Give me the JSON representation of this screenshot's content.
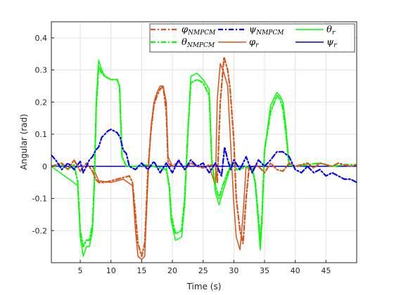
{
  "chart_data": {
    "type": "line",
    "xlabel": "Time (s)",
    "ylabel": "Angular (rad)",
    "xlim": [
      0.3,
      50
    ],
    "ylim": [
      -0.3,
      0.45
    ],
    "xticks": [
      5,
      10,
      15,
      20,
      25,
      30,
      35,
      40,
      45
    ],
    "yticks": [
      -0.2,
      -0.1,
      0,
      0.1,
      0.2,
      0.3,
      0.4
    ],
    "xtick_labels": [
      "5",
      "10",
      "15",
      "20",
      "25",
      "30",
      "35",
      "40",
      "45"
    ],
    "ytick_labels": [
      "-0.2",
      "-0.1",
      "0",
      "0.1",
      "0.2",
      "0.3",
      "0.4"
    ],
    "grid": true,
    "legend_position": "top-right",
    "series": [
      {
        "name": "φ_NMPCM",
        "name_base": "φ",
        "name_sub": "NMPCM",
        "color": "#d95319",
        "dash": "dashdot",
        "width": 2.2,
        "x": [
          0.3,
          2,
          3,
          4,
          5,
          6,
          7,
          7.5,
          8,
          9,
          10,
          11,
          12,
          13,
          13.5,
          14,
          14.4,
          15,
          15.5,
          16,
          16.5,
          17,
          17.5,
          18,
          18.5,
          19,
          19.3,
          20,
          21,
          22,
          23,
          24,
          25,
          26,
          27,
          27.3,
          27.8,
          28.4,
          29,
          29.4,
          30,
          30.4,
          31,
          31.5,
          32,
          32.5,
          33,
          33.5,
          34,
          35,
          36,
          37,
          38,
          39,
          40,
          41,
          42,
          43,
          44,
          45,
          46,
          47,
          48,
          49,
          50
        ],
        "y": [
          0.0,
          0.01,
          -0.01,
          0.02,
          -0.015,
          0.01,
          -0.015,
          -0.04,
          -0.05,
          -0.05,
          -0.045,
          -0.04,
          -0.035,
          -0.03,
          -0.05,
          -0.15,
          -0.24,
          -0.28,
          -0.24,
          -0.02,
          0.11,
          0.19,
          0.22,
          0.24,
          0.25,
          0.17,
          0.01,
          0.0,
          0.015,
          -0.01,
          0.01,
          0.0,
          -0.005,
          0.005,
          0.0,
          -0.05,
          0.2,
          0.34,
          0.3,
          0.24,
          0.08,
          -0.1,
          -0.2,
          -0.24,
          -0.1,
          0.0,
          -0.02,
          0.005,
          0.0,
          -0.02,
          0.01,
          -0.01,
          -0.015,
          0.01,
          0.0,
          0.005,
          0.01,
          -0.005,
          0.01,
          0.005,
          0.0,
          0.01,
          0.005,
          0.0,
          0.005
        ]
      },
      {
        "name": "θ_NMPCM",
        "name_base": "θ",
        "name_sub": "NMPCM",
        "color": "#00ff00",
        "dash": "dashdot",
        "width": 2.2,
        "x": [
          0.3,
          2,
          3,
          4,
          4.6,
          5.0,
          5.5,
          6,
          6.5,
          7,
          7.3,
          7.6,
          8,
          8.5,
          9,
          10,
          11,
          11.4,
          11.8,
          12.5,
          14,
          16,
          18,
          19,
          19.5,
          19.8,
          20.5,
          21.5,
          22,
          22.5,
          23,
          24,
          25,
          26,
          26.4,
          27,
          27.6,
          28.2,
          29,
          29.5,
          30,
          30.5,
          31,
          32,
          33,
          33.5,
          34,
          34.3,
          34.6,
          35,
          36,
          37,
          37.5,
          38,
          38.5,
          39,
          40,
          42,
          44,
          46,
          48,
          50
        ],
        "y": [
          0.0,
          0.005,
          -0.01,
          0.005,
          -0.05,
          -0.2,
          -0.25,
          -0.23,
          -0.23,
          -0.18,
          -0.05,
          0.18,
          0.31,
          0.29,
          0.28,
          0.27,
          0.27,
          0.25,
          0.03,
          0.0,
          0.0,
          0.005,
          -0.005,
          -0.01,
          -0.06,
          -0.15,
          -0.21,
          -0.2,
          -0.1,
          0.1,
          0.26,
          0.27,
          0.26,
          0.22,
          0.02,
          -0.06,
          -0.1,
          -0.06,
          -0.02,
          0.005,
          0.01,
          -0.01,
          -0.01,
          0.0,
          -0.01,
          -0.05,
          -0.16,
          -0.24,
          -0.15,
          0.05,
          0.17,
          0.22,
          0.21,
          0.18,
          0.1,
          0.005,
          0.0,
          0.005,
          0.01,
          0.0,
          0.005,
          0.005
        ]
      },
      {
        "name": "ψ_NMPCM",
        "name_base": "ψ",
        "name_sub": "NMPCM",
        "color": "#0000ff",
        "dash": "dashdot",
        "width": 2.2,
        "x": [
          0.3,
          1,
          2,
          3,
          4,
          5,
          5.5,
          6,
          6.5,
          7,
          7.5,
          8,
          8.5,
          9,
          9.5,
          10,
          10.5,
          11,
          11.5,
          12,
          12.5,
          13,
          14,
          15,
          16,
          17,
          18,
          19,
          20,
          21,
          22,
          23,
          24,
          25,
          26,
          27,
          28,
          28.5,
          29,
          29.5,
          30,
          31,
          32,
          33,
          34,
          35,
          36,
          37,
          38,
          39,
          40,
          41,
          42,
          43,
          44,
          45,
          46,
          47,
          48,
          49,
          50
        ],
        "y": [
          0.035,
          0.02,
          -0.01,
          0.01,
          -0.01,
          0.015,
          -0.02,
          0.0,
          0.02,
          0.03,
          0.05,
          0.06,
          0.09,
          0.1,
          0.11,
          0.115,
          0.11,
          0.105,
          0.09,
          0.05,
          0.04,
          0.0,
          -0.01,
          0.01,
          -0.01,
          0.015,
          -0.02,
          0.01,
          -0.02,
          0.02,
          -0.01,
          0.02,
          0.0,
          0.01,
          -0.02,
          0.01,
          -0.03,
          0.06,
          0.02,
          -0.01,
          0.02,
          -0.01,
          0.03,
          -0.02,
          0.02,
          0.0,
          0.02,
          0.045,
          0.045,
          0.03,
          -0.01,
          -0.02,
          0.0,
          -0.02,
          -0.01,
          -0.03,
          -0.02,
          -0.03,
          -0.04,
          -0.04,
          -0.05
        ]
      },
      {
        "name": "φ_r",
        "name_base": "φ",
        "name_sub": "r",
        "color": "#d95319",
        "dash": "solid",
        "width": 1.5,
        "x": [
          0.3,
          5,
          7,
          8,
          10,
          12,
          13.5,
          14,
          14.4,
          15,
          15.5,
          16,
          16.5,
          17,
          17.5,
          18,
          18.5,
          19,
          19.3,
          20,
          26,
          27,
          27.3,
          27.8,
          28.4,
          29,
          29.4,
          30,
          30.4,
          31,
          31.5,
          32,
          32.5,
          33,
          50
        ],
        "y": [
          0.0,
          0.0,
          0.0,
          -0.045,
          -0.05,
          -0.04,
          -0.06,
          -0.2,
          -0.28,
          -0.29,
          -0.28,
          -0.05,
          0.12,
          0.2,
          0.23,
          0.25,
          0.25,
          0.2,
          0.03,
          0.0,
          0.0,
          -0.06,
          0.21,
          0.32,
          0.29,
          0.25,
          0.1,
          -0.12,
          -0.22,
          -0.26,
          -0.15,
          0.0,
          -0.01,
          0.0,
          0.0
        ]
      },
      {
        "name": "θ_r",
        "name_base": "θ",
        "name_sub": "r",
        "color": "#00ff00",
        "dash": "solid",
        "width": 1.5,
        "x": [
          0.3,
          4.6,
          5.0,
          5.5,
          6,
          6.5,
          7,
          7.3,
          7.6,
          8,
          8.5,
          9,
          10,
          11,
          11.4,
          11.8,
          12.5,
          19,
          19.5,
          19.8,
          20.5,
          21.5,
          22,
          22.5,
          23,
          24,
          25,
          26,
          26.4,
          27,
          27.6,
          28.2,
          29,
          29.5,
          33,
          33.5,
          34,
          34.3,
          34.6,
          35,
          36,
          37,
          37.5,
          38,
          38.5,
          39,
          50
        ],
        "y": [
          0.0,
          -0.06,
          -0.22,
          -0.28,
          -0.25,
          -0.25,
          -0.2,
          -0.06,
          0.2,
          0.33,
          0.3,
          0.28,
          0.27,
          0.27,
          0.25,
          0.03,
          0.0,
          0.0,
          -0.07,
          -0.17,
          -0.23,
          -0.22,
          -0.12,
          0.1,
          0.28,
          0.29,
          0.27,
          0.24,
          0.02,
          -0.08,
          -0.12,
          -0.08,
          -0.03,
          0.0,
          0.0,
          -0.06,
          -0.18,
          -0.26,
          -0.17,
          0.05,
          0.19,
          0.23,
          0.22,
          0.2,
          0.12,
          0.0,
          0.0
        ]
      },
      {
        "name": "ψ_r",
        "name_base": "ψ",
        "name_sub": "r",
        "color": "#0000cd",
        "dash": "solid",
        "width": 1.5,
        "x": [
          0.3,
          50
        ],
        "y": [
          0.0,
          0.0
        ]
      }
    ]
  }
}
